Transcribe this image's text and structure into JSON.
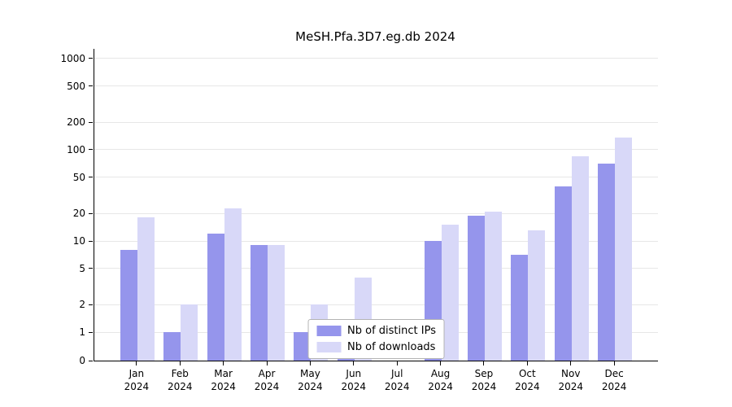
{
  "chart_data": {
    "type": "bar",
    "title": "MeSH.Pfa.3D7.eg.db 2024",
    "categories": [
      "Jan 2024",
      "Feb 2024",
      "Mar 2024",
      "Apr 2024",
      "May 2024",
      "Jun 2024",
      "Jul 2024",
      "Aug 2024",
      "Sep 2024",
      "Oct 2024",
      "Nov 2024",
      "Dec 2024"
    ],
    "series": [
      {
        "name": "Nb of distinct IPs",
        "color": "#9595ec",
        "values": [
          8,
          1,
          12,
          9,
          1,
          1,
          0,
          10,
          19,
          7,
          40,
          70
        ]
      },
      {
        "name": "Nb of downloads",
        "color": "#d8d8f8",
        "values": [
          18,
          2,
          23,
          9,
          2,
          4,
          0,
          15,
          21,
          13,
          85,
          135
        ]
      }
    ],
    "xlabel": "",
    "ylabel": "",
    "yscale": "log",
    "yticks": [
      0,
      1,
      2,
      5,
      10,
      20,
      50,
      100,
      200,
      500,
      1000
    ],
    "ylim": [
      0,
      1100
    ],
    "grid": true,
    "legend_position": "lower center"
  },
  "colors": {
    "grid": "#e7e7e7",
    "axis": "#000000",
    "legend_border": "#b4b4b4",
    "background": "#ffffff",
    "distinct_ips": "#9595ec",
    "downloads": "#d8d8f8"
  }
}
